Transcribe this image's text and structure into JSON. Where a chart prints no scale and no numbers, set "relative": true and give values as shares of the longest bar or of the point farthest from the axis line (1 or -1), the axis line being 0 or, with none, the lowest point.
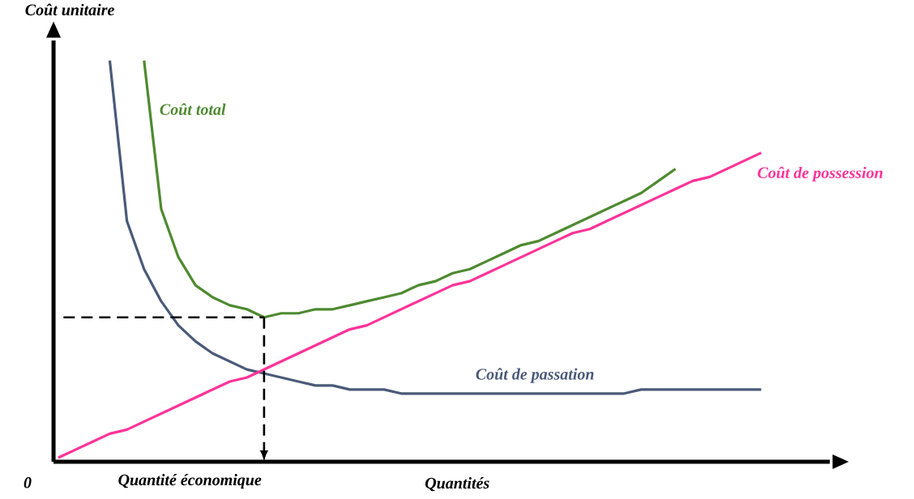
{
  "chart_data": {
    "type": "line",
    "relative": true,
    "xlabel": "Quantités",
    "ylabel": "Coût unitaire",
    "categories": [
      null,
      null,
      null,
      null,
      null,
      null,
      null,
      null,
      null,
      null,
      null,
      null,
      null,
      null,
      null,
      null,
      null,
      null,
      null,
      null,
      null,
      null,
      null,
      null,
      null,
      null,
      null,
      null,
      null,
      null,
      null,
      null,
      null,
      null,
      null,
      null,
      null,
      null,
      null,
      null,
      null,
      null
    ],
    "annotations": [
      "0",
      "Quantité économique"
    ],
    "series": [
      {
        "name": "Coût de passation",
        "color": "#4a5a78",
        "values": [
          null,
          null,
          null,
          1.0,
          0.6,
          0.48,
          0.4,
          0.34,
          0.3,
          0.27,
          0.25,
          0.23,
          0.22,
          0.21,
          0.2,
          0.19,
          0.19,
          0.18,
          0.18,
          0.18,
          0.17,
          0.17,
          0.17,
          0.17,
          0.17,
          0.17,
          0.17,
          0.17,
          0.17,
          0.17,
          0.17,
          0.17,
          0.17,
          0.17,
          0.18,
          0.18,
          0.18,
          0.18,
          0.18,
          0.18,
          0.18,
          0.18
        ]
      },
      {
        "name": "Coût total",
        "color": "#4e8a30",
        "values": [
          null,
          null,
          null,
          null,
          null,
          1.0,
          0.63,
          0.51,
          0.44,
          0.41,
          0.39,
          0.38,
          0.36,
          0.37,
          0.37,
          0.38,
          0.38,
          0.39,
          0.4,
          0.41,
          0.42,
          0.44,
          0.45,
          0.47,
          0.48,
          0.5,
          0.52,
          0.54,
          0.55,
          0.57,
          0.59,
          0.61,
          0.63,
          0.65,
          0.67,
          0.7,
          0.73,
          null,
          null,
          null,
          null,
          null
        ]
      },
      {
        "name": "Coût de possession",
        "color": "#ff3399",
        "values": [
          0.01,
          0.03,
          0.05,
          0.07,
          0.08,
          0.1,
          0.12,
          0.14,
          0.16,
          0.18,
          0.2,
          0.21,
          0.23,
          0.25,
          0.27,
          0.29,
          0.31,
          0.33,
          0.34,
          0.36,
          0.38,
          0.4,
          0.42,
          0.44,
          0.45,
          0.47,
          0.49,
          0.51,
          0.53,
          0.55,
          0.57,
          0.58,
          0.6,
          0.62,
          0.64,
          0.66,
          0.68,
          0.7,
          0.71,
          0.73,
          0.75,
          0.77
        ]
      }
    ],
    "ref_lines": [
      {
        "axis": "y",
        "value": 0.36,
        "line_style": "dashed",
        "color": "#000000"
      }
    ]
  }
}
